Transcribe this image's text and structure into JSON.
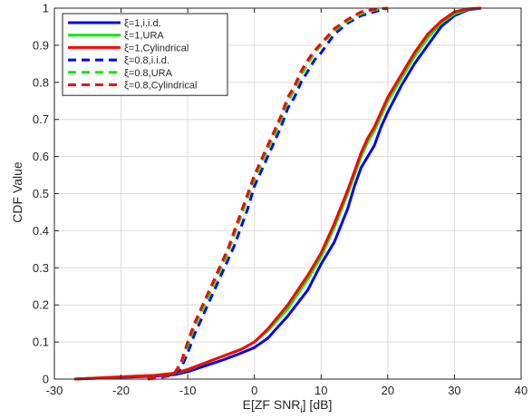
{
  "chart_data": {
    "type": "line",
    "title": "",
    "xlabel": "E[ZF SNR_i] [dB]",
    "xlabel_main": "E[ZF SNR",
    "xlabel_sub": "i",
    "xlabel_tail": "] [dB]",
    "ylabel": "CDF Value",
    "xlim": [
      -30,
      40
    ],
    "ylim": [
      0,
      1
    ],
    "xticks": [
      -30,
      -20,
      -10,
      0,
      10,
      20,
      30,
      40
    ],
    "yticks": [
      0,
      0.1,
      0.2,
      0.3,
      0.4,
      0.5,
      0.6,
      0.7,
      0.8,
      0.9,
      1
    ],
    "xtick_labels": [
      "-30",
      "-20",
      "-10",
      "0",
      "10",
      "20",
      "30",
      "40"
    ],
    "ytick_labels": [
      "0",
      "0.1",
      "0.2",
      "0.3",
      "0.4",
      "0.5",
      "0.6",
      "0.7",
      "0.8",
      "0.9",
      "1"
    ],
    "grid": true,
    "legend_position": "top-left",
    "series": [
      {
        "name": "ξ=1,i.i.d.",
        "color": "#0000ff",
        "dash": "solid",
        "x": [
          -27,
          -20,
          -15,
          -12,
          -10,
          -5,
          -2,
          0,
          2,
          5,
          8,
          10,
          12,
          14,
          15,
          16,
          17,
          18,
          19,
          20,
          22,
          24,
          26,
          28,
          30,
          32,
          34
        ],
        "y": [
          0,
          0.005,
          0.008,
          0.012,
          0.02,
          0.05,
          0.07,
          0.085,
          0.11,
          0.17,
          0.24,
          0.31,
          0.37,
          0.46,
          0.52,
          0.57,
          0.6,
          0.63,
          0.68,
          0.72,
          0.79,
          0.85,
          0.9,
          0.95,
          0.98,
          0.995,
          1
        ]
      },
      {
        "name": "ξ=1,URA",
        "color": "#00ee00",
        "dash": "solid",
        "x": [
          -27,
          -20,
          -15,
          -12,
          -10,
          -5,
          -2,
          0,
          2,
          5,
          8,
          10,
          12,
          14,
          15,
          16,
          17,
          18,
          19,
          20,
          22,
          24,
          26,
          28,
          30,
          32,
          34
        ],
        "y": [
          0,
          0.006,
          0.01,
          0.015,
          0.025,
          0.06,
          0.08,
          0.1,
          0.13,
          0.19,
          0.27,
          0.33,
          0.41,
          0.5,
          0.55,
          0.6,
          0.64,
          0.67,
          0.71,
          0.75,
          0.81,
          0.87,
          0.92,
          0.96,
          0.985,
          0.997,
          1
        ]
      },
      {
        "name": "ξ=1,Cylindrical",
        "color": "#ff0000",
        "dash": "solid",
        "x": [
          -27,
          -20,
          -15,
          -12,
          -10,
          -5,
          -2,
          0,
          2,
          5,
          8,
          10,
          12,
          14,
          15,
          16,
          17,
          18,
          19,
          20,
          22,
          24,
          26,
          28,
          30,
          32,
          34
        ],
        "y": [
          0,
          0.006,
          0.01,
          0.016,
          0.026,
          0.06,
          0.08,
          0.1,
          0.135,
          0.2,
          0.28,
          0.34,
          0.42,
          0.51,
          0.56,
          0.61,
          0.65,
          0.68,
          0.72,
          0.76,
          0.82,
          0.88,
          0.93,
          0.965,
          0.99,
          0.998,
          1
        ]
      },
      {
        "name": "ξ=0.8,i.i.d.",
        "color": "#0000ff",
        "dash": "dashed",
        "x": [
          -16,
          -14,
          -12,
          -11,
          -10,
          -9,
          -8,
          -7,
          -6,
          -5,
          -4,
          -3,
          -2,
          -1,
          0,
          1,
          2,
          3,
          4,
          5,
          6,
          7,
          8,
          9,
          10,
          12,
          14,
          16,
          18,
          20
        ],
        "y": [
          0,
          0.005,
          0.012,
          0.03,
          0.07,
          0.12,
          0.16,
          0.2,
          0.24,
          0.28,
          0.32,
          0.36,
          0.41,
          0.46,
          0.52,
          0.56,
          0.6,
          0.64,
          0.68,
          0.73,
          0.76,
          0.8,
          0.83,
          0.86,
          0.88,
          0.93,
          0.96,
          0.98,
          0.99,
          1
        ]
      },
      {
        "name": "ξ=0.8,URA",
        "color": "#00ee00",
        "dash": "dashed",
        "x": [
          -16,
          -14,
          -12,
          -11,
          -10,
          -9,
          -8,
          -7,
          -6,
          -5,
          -4,
          -3,
          -2,
          -1,
          0,
          1,
          2,
          3,
          4,
          5,
          6,
          7,
          8,
          9,
          10,
          12,
          14,
          16,
          18,
          20
        ],
        "y": [
          0,
          0.006,
          0.015,
          0.04,
          0.09,
          0.14,
          0.18,
          0.22,
          0.26,
          0.3,
          0.34,
          0.39,
          0.44,
          0.49,
          0.54,
          0.58,
          0.62,
          0.66,
          0.7,
          0.75,
          0.78,
          0.82,
          0.85,
          0.88,
          0.9,
          0.94,
          0.965,
          0.985,
          0.995,
          1
        ]
      },
      {
        "name": "ξ=0.8,Cylindrical",
        "color": "#ff0000",
        "dash": "dashed",
        "x": [
          -16,
          -14,
          -12,
          -11,
          -10,
          -9,
          -8,
          -7,
          -6,
          -5,
          -4,
          -3,
          -2,
          -1,
          0,
          1,
          2,
          3,
          4,
          5,
          6,
          7,
          8,
          9,
          10,
          12,
          14,
          16,
          18,
          20
        ],
        "y": [
          0,
          0.007,
          0.016,
          0.045,
          0.1,
          0.15,
          0.19,
          0.23,
          0.27,
          0.31,
          0.35,
          0.4,
          0.45,
          0.5,
          0.55,
          0.59,
          0.63,
          0.67,
          0.71,
          0.76,
          0.79,
          0.83,
          0.86,
          0.885,
          0.905,
          0.945,
          0.97,
          0.99,
          0.997,
          1
        ]
      }
    ]
  }
}
